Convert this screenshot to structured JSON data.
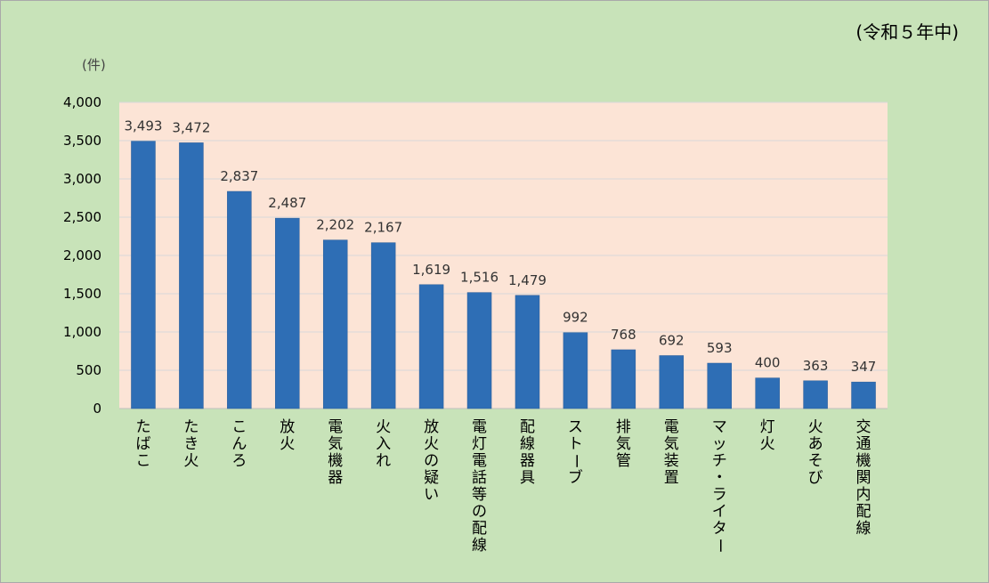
{
  "header": {
    "period": "(令和５年中)",
    "unit": "(件)"
  },
  "chart_data": {
    "type": "bar",
    "categories": [
      "たばこ",
      "たき火",
      "こんろ",
      "放火",
      "電気機器",
      "火入れ",
      "放火の疑い",
      "電灯電話等の配線",
      "配線器具",
      "ストーブ",
      "排気管",
      "電気装置",
      "マッチ・ライター",
      "灯火",
      "火あそび",
      "交通機関内配線"
    ],
    "values": [
      3493,
      3472,
      2837,
      2487,
      2202,
      2167,
      1619,
      1516,
      1479,
      992,
      768,
      692,
      593,
      400,
      363,
      347
    ],
    "value_labels": [
      "3,493",
      "3,472",
      "2,837",
      "2,487",
      "2,202",
      "2,167",
      "1,619",
      "1,516",
      "1,479",
      "992",
      "768",
      "692",
      "593",
      "400",
      "363",
      "347"
    ],
    "y_ticks": [
      0,
      500,
      1000,
      1500,
      2000,
      2500,
      3000,
      3500,
      4000
    ],
    "y_tick_labels": [
      "0",
      "500",
      "1,000",
      "1,500",
      "2,000",
      "2,500",
      "3,000",
      "3,500",
      "4,000"
    ],
    "ylim": [
      0,
      4000
    ],
    "grid": true,
    "legend": "none",
    "colors": {
      "bar": "#2e6eb5",
      "bar_edge": "#2a5d99",
      "plot_bg": "#fce4d6",
      "outer_bg": "#c8e3b9",
      "grid": "#d9d9d9"
    }
  }
}
